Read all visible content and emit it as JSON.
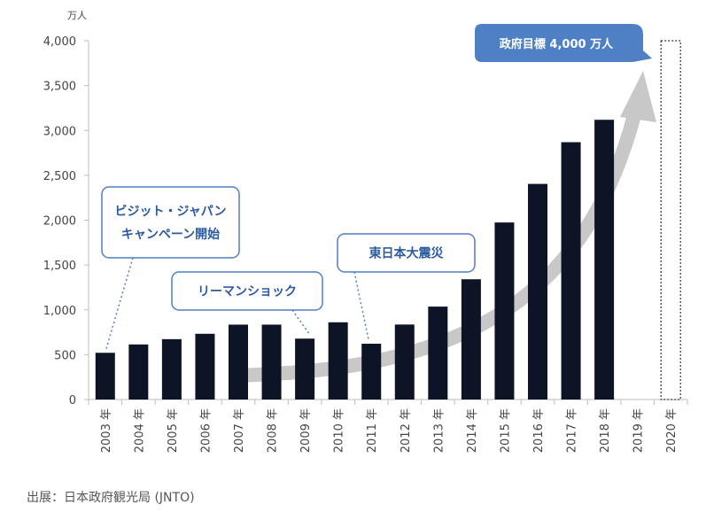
{
  "chart_data": {
    "type": "bar",
    "unit": "万人",
    "categories": [
      "2003 年",
      "2004 年",
      "2005 年",
      "2006 年",
      "2007 年",
      "2008 年",
      "2009 年",
      "2010 年",
      "2011 年",
      "2012 年",
      "2013 年",
      "2014 年",
      "2015 年",
      "2016 年",
      "2017 年",
      "2018 年",
      "2019 年",
      "2020 年"
    ],
    "values": [
      521,
      614,
      673,
      733,
      835,
      835,
      679,
      861,
      622,
      836,
      1036,
      1341,
      1974,
      2404,
      2869,
      3119,
      null,
      null
    ],
    "target": {
      "category": "2020 年",
      "value": 4000,
      "label": "政府目標 4,000 万人",
      "style": "dotted-outline"
    },
    "ylim": [
      0,
      4000
    ],
    "yticks": [
      "0",
      "500",
      "1,000",
      "1,500",
      "2,000",
      "2,500",
      "3,000",
      "3,500",
      "4,000"
    ],
    "ytick_values": [
      0,
      500,
      1000,
      1500,
      2000,
      2500,
      3000,
      3500,
      4000
    ],
    "annotations": [
      {
        "lines": [
          "ビジット・ジャパン",
          "キャンペーン開始"
        ],
        "category": "2003 年"
      },
      {
        "lines": [
          "リーマンショック"
        ],
        "category": "2009 年"
      },
      {
        "lines": [
          "東日本大震災"
        ],
        "category": "2011 年"
      }
    ],
    "colors": {
      "bar": "#0c1426",
      "callout_border": "#4f7fc4",
      "callout_text": "#2c5aa0",
      "target_box": "#4f7fc4",
      "arrow": "#c8c8c8",
      "axis": "#bdbdbd"
    },
    "grid": false
  },
  "source": "出展：日本政府観光局 (JNTO)"
}
